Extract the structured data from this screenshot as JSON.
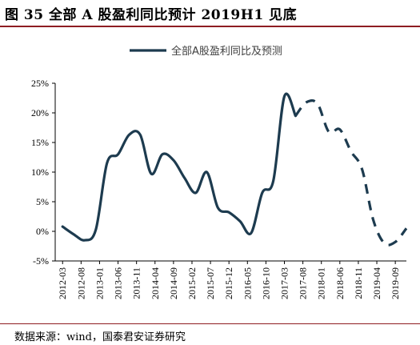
{
  "figure": {
    "title": "图 35 全部 A 股盈利同比预计 2019H1 见底",
    "source": "数据来源：wind，国泰君安证券研究"
  },
  "colors": {
    "line": "#1d3b4f",
    "rule": "#8e1d22",
    "axis": "#000000"
  },
  "chart_data": {
    "type": "line",
    "title": "",
    "xlabel": "",
    "ylabel": "",
    "ylim": [
      -5,
      25
    ],
    "y_ticks": [
      -5,
      0,
      5,
      10,
      15,
      20,
      25
    ],
    "y_tick_labels": [
      "-5%",
      "0%",
      "5%",
      "10%",
      "15%",
      "20%",
      "25%"
    ],
    "y_unit": "%",
    "x_tick_labels": [
      "2012-03",
      "2012-08",
      "2013-01",
      "2013-06",
      "2013-11",
      "2014-04",
      "2014-09",
      "2015-02",
      "2015-07",
      "2015-12",
      "2016-05",
      "2016-10",
      "2017-03",
      "2017-08",
      "2018-01",
      "2018-06",
      "2018-11",
      "2019-04",
      "2019-09"
    ],
    "grid": false,
    "legend_position": "top-center",
    "series": [
      {
        "name": "全部A股盈利同比及预测",
        "solid_until_index": 21,
        "x": [
          "2012-03",
          "2012-06",
          "2012-09",
          "2012-12",
          "2013-03",
          "2013-06",
          "2013-09",
          "2013-12",
          "2014-03",
          "2014-06",
          "2014-09",
          "2014-12",
          "2015-03",
          "2015-06",
          "2015-09",
          "2015-12",
          "2016-03",
          "2016-06",
          "2016-09",
          "2016-12",
          "2017-03",
          "2017-06",
          "2017-09",
          "2017-12",
          "2018-03",
          "2018-06",
          "2018-09",
          "2018-12",
          "2019-03",
          "2019-06",
          "2019-09",
          "2019-12"
        ],
        "values": [
          0.8,
          -0.5,
          -1.5,
          0.3,
          11.5,
          13.0,
          16.3,
          16.3,
          9.7,
          13.0,
          12.0,
          9.0,
          6.5,
          10.0,
          4.0,
          3.2,
          1.7,
          -0.3,
          6.5,
          8.5,
          22.8,
          19.5,
          21.8,
          21.5,
          16.8,
          17.2,
          13.5,
          10.5,
          2.0,
          -2.0,
          -1.8,
          0.5
        ]
      }
    ]
  }
}
